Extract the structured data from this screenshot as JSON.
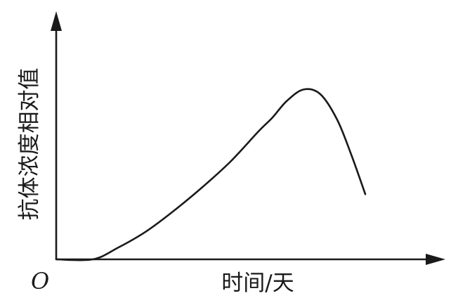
{
  "chart_data": {
    "type": "line",
    "xlabel": "时间/天",
    "ylabel": "抗体浓度相对值",
    "origin_label": "O",
    "x_ticks": [],
    "y_ticks": [],
    "grid": false,
    "series": [
      {
        "points": [
          [
            0,
            0
          ],
          [
            13,
            0
          ],
          [
            22,
            5
          ],
          [
            32,
            12
          ],
          [
            42,
            21
          ],
          [
            52,
            31
          ],
          [
            62,
            42
          ],
          [
            72,
            55
          ],
          [
            77,
            61
          ],
          [
            82,
            68
          ],
          [
            88,
            73
          ],
          [
            94,
            71
          ],
          [
            100,
            60
          ],
          [
            105,
            45
          ],
          [
            110,
            28
          ]
        ]
      }
    ],
    "xlim": [
      0,
      135
    ],
    "ylim": [
      0,
      100
    ]
  }
}
